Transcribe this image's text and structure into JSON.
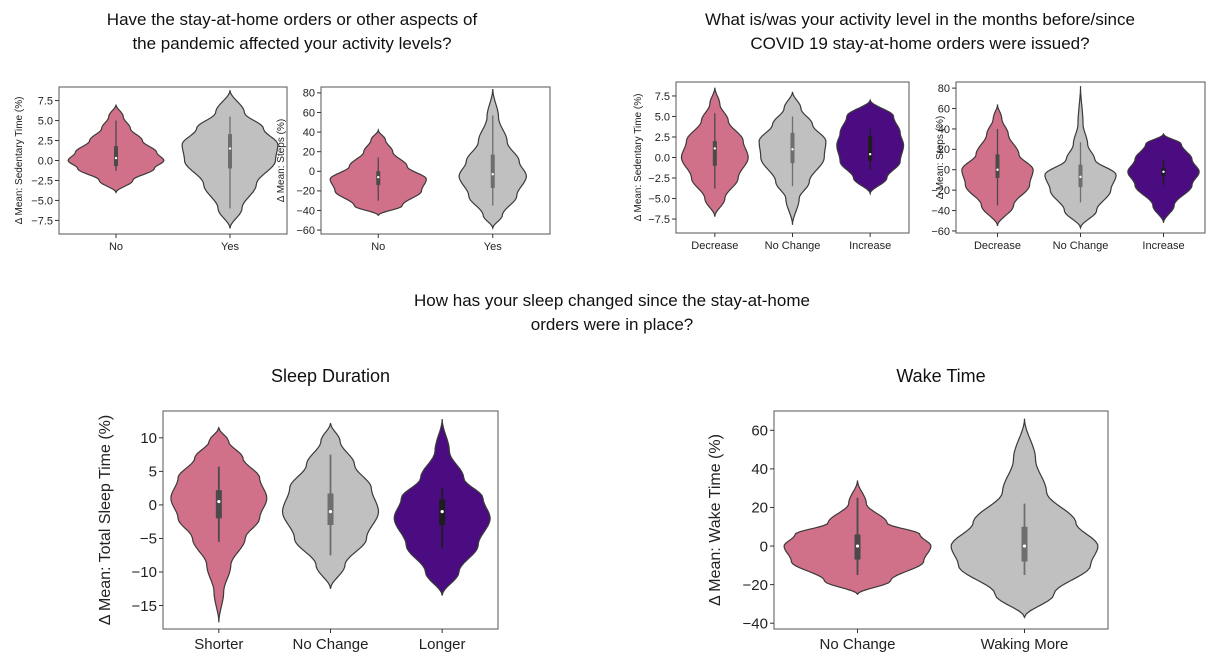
{
  "headings": {
    "activity_q1": [
      "Have the stay-at-home orders or other aspects of",
      "the pandemic affected your activity levels?"
    ],
    "activity_q2": [
      "What is/was your activity level in the months before/since",
      "COVID 19 stay-at-home orders were issued?"
    ],
    "sleep_q": [
      "How has your sleep changed since the stay-at-home",
      "orders were in place?"
    ]
  },
  "colors": {
    "pink": "#d07089",
    "gray": "#c0c0c0",
    "purple": "#4b0c82"
  },
  "chart_data": [
    {
      "type": "violin",
      "title": "",
      "xlabel": "",
      "ylabel": "Δ Mean: Sedentary Time (%)",
      "ylim": [
        -9.2,
        9.2
      ],
      "yticks": [
        -7.5,
        -5.0,
        -2.5,
        0.0,
        2.5,
        5.0,
        7.5
      ],
      "categories": [
        "No",
        "Yes"
      ],
      "series": [
        {
          "category": "No",
          "color": "pink",
          "range": [
            -4.0,
            7.0
          ],
          "q1": -0.7,
          "median": 0.3,
          "q3": 1.8,
          "whisker": [
            -1.3,
            5.0
          ],
          "density": [
            [
              -4.0,
              0.0
            ],
            [
              -2.5,
              0.35
            ],
            [
              -1.0,
              0.8
            ],
            [
              0.0,
              1.0
            ],
            [
              1.0,
              0.85
            ],
            [
              2.5,
              0.55
            ],
            [
              4.0,
              0.3
            ],
            [
              5.5,
              0.15
            ],
            [
              7.0,
              0.0
            ]
          ]
        },
        {
          "category": "Yes",
          "color": "gray",
          "range": [
            -8.5,
            8.8
          ],
          "q1": -1.0,
          "median": 1.5,
          "q3": 3.3,
          "whisker": [
            -6.0,
            5.5
          ],
          "density": [
            [
              -8.5,
              0.0
            ],
            [
              -6.0,
              0.25
            ],
            [
              -3.0,
              0.55
            ],
            [
              0.0,
              0.95
            ],
            [
              2.0,
              1.0
            ],
            [
              4.0,
              0.7
            ],
            [
              6.0,
              0.3
            ],
            [
              8.8,
              0.0
            ]
          ]
        }
      ]
    },
    {
      "type": "violin",
      "title": "",
      "xlabel": "",
      "ylabel": "Δ Mean: Steps (%)",
      "ylim": [
        -64,
        86
      ],
      "yticks": [
        -60,
        -40,
        -20,
        0,
        20,
        40,
        60,
        80
      ],
      "categories": [
        "No",
        "Yes"
      ],
      "series": [
        {
          "category": "No",
          "color": "pink",
          "range": [
            -45,
            42
          ],
          "q1": -14,
          "median": -6,
          "q3": 0,
          "whisker": [
            -30,
            14
          ],
          "density": [
            [
              -45,
              0.0
            ],
            [
              -35,
              0.5
            ],
            [
              -20,
              0.9
            ],
            [
              -8,
              1.0
            ],
            [
              5,
              0.6
            ],
            [
              20,
              0.3
            ],
            [
              32,
              0.15
            ],
            [
              42,
              0.0
            ]
          ]
        },
        {
          "category": "Yes",
          "color": "gray",
          "range": [
            -58,
            84
          ],
          "q1": -17,
          "median": -3,
          "q3": 17,
          "whisker": [
            -35,
            57
          ],
          "density": [
            [
              -58,
              0.0
            ],
            [
              -45,
              0.2
            ],
            [
              -25,
              0.5
            ],
            [
              -5,
              0.7
            ],
            [
              10,
              0.55
            ],
            [
              30,
              0.3
            ],
            [
              55,
              0.12
            ],
            [
              84,
              0.0
            ]
          ]
        }
      ]
    },
    {
      "type": "violin",
      "title": "",
      "xlabel": "",
      "ylabel": "Δ Mean: Sedentary Time (%)",
      "ylim": [
        -9.2,
        9.2
      ],
      "yticks": [
        -7.5,
        -5.0,
        -2.5,
        0.0,
        2.5,
        5.0,
        7.5
      ],
      "categories": [
        "Decrease",
        "No Change",
        "Increase"
      ],
      "series": [
        {
          "category": "Decrease",
          "color": "pink",
          "range": [
            -7.2,
            8.5
          ],
          "q1": -1.0,
          "median": 1.1,
          "q3": 2.0,
          "whisker": [
            -3.8,
            5.4
          ],
          "density": [
            [
              -7.2,
              0.0
            ],
            [
              -5.0,
              0.3
            ],
            [
              -2.5,
              0.7
            ],
            [
              0.0,
              1.0
            ],
            [
              2.0,
              0.85
            ],
            [
              4.5,
              0.4
            ],
            [
              6.5,
              0.15
            ],
            [
              8.5,
              0.0
            ]
          ]
        },
        {
          "category": "No Change",
          "color": "gray",
          "range": [
            -8.2,
            8.0
          ],
          "q1": -0.7,
          "median": 1.0,
          "q3": 3.0,
          "whisker": [
            -3.5,
            5.0
          ],
          "density": [
            [
              -8.2,
              0.0
            ],
            [
              -5.0,
              0.2
            ],
            [
              -3.0,
              0.5
            ],
            [
              0.0,
              0.95
            ],
            [
              2.0,
              1.0
            ],
            [
              4.0,
              0.6
            ],
            [
              6.0,
              0.25
            ],
            [
              8.0,
              0.0
            ]
          ]
        },
        {
          "category": "Increase",
          "color": "purple",
          "range": [
            -4.4,
            7.0
          ],
          "q1": -0.4,
          "median": 0.4,
          "q3": 2.6,
          "whisker": [
            -1.5,
            3.5
          ],
          "density": [
            [
              -4.4,
              0.0
            ],
            [
              -2.5,
              0.5
            ],
            [
              -0.5,
              0.9
            ],
            [
              1.5,
              1.0
            ],
            [
              3.0,
              0.9
            ],
            [
              5.0,
              0.7
            ],
            [
              7.0,
              0.0
            ]
          ]
        }
      ]
    },
    {
      "type": "violin",
      "title": "",
      "xlabel": "",
      "ylabel": "Δ Mean: Steps (%)",
      "ylim": [
        -62,
        86
      ],
      "yticks": [
        -60,
        -40,
        -20,
        0,
        20,
        40,
        60,
        80
      ],
      "categories": [
        "Decrease",
        "No Change",
        "Increase"
      ],
      "series": [
        {
          "category": "Decrease",
          "color": "pink",
          "range": [
            -55,
            64
          ],
          "q1": -8,
          "median": 0,
          "q3": 15,
          "whisker": [
            -35,
            40
          ],
          "density": [
            [
              -55,
              0.0
            ],
            [
              -35,
              0.45
            ],
            [
              -15,
              0.9
            ],
            [
              0,
              1.0
            ],
            [
              15,
              0.6
            ],
            [
              35,
              0.3
            ],
            [
              50,
              0.12
            ],
            [
              64,
              0.0
            ]
          ]
        },
        {
          "category": "No Change",
          "color": "gray",
          "range": [
            -57,
            82
          ],
          "q1": -17,
          "median": -7,
          "q3": 5,
          "whisker": [
            -32,
            27
          ],
          "density": [
            [
              -57,
              0.0
            ],
            [
              -40,
              0.45
            ],
            [
              -20,
              0.85
            ],
            [
              -5,
              1.0
            ],
            [
              10,
              0.4
            ],
            [
              25,
              0.2
            ],
            [
              45,
              0.07
            ],
            [
              82,
              0.0
            ]
          ]
        },
        {
          "category": "Increase",
          "color": "purple",
          "range": [
            -52,
            35
          ],
          "q1": -6,
          "median": -2,
          "q3": 2,
          "whisker": [
            -15,
            10
          ],
          "density": [
            [
              -52,
              0.0
            ],
            [
              -35,
              0.3
            ],
            [
              -15,
              0.8
            ],
            [
              -2,
              1.0
            ],
            [
              10,
              0.8
            ],
            [
              25,
              0.5
            ],
            [
              35,
              0.0
            ]
          ]
        }
      ]
    },
    {
      "type": "violin",
      "title": "Sleep Duration",
      "xlabel": "",
      "ylabel": "Δ Mean: Total Sleep Time (%)",
      "ylim": [
        -18.5,
        14
      ],
      "yticks": [
        -15,
        -10,
        -5,
        0,
        5,
        10
      ],
      "categories": [
        "Shorter",
        "No Change",
        "Longer"
      ],
      "series": [
        {
          "category": "Shorter",
          "color": "pink",
          "range": [
            -17.5,
            11.5
          ],
          "q1": -2.0,
          "median": 0.5,
          "q3": 2.2,
          "whisker": [
            -5.5,
            5.7
          ],
          "density": [
            [
              -17.5,
              0.0
            ],
            [
              -13.0,
              0.1
            ],
            [
              -9.0,
              0.25
            ],
            [
              -5.0,
              0.55
            ],
            [
              -2.0,
              0.85
            ],
            [
              1.0,
              1.0
            ],
            [
              4.0,
              0.85
            ],
            [
              7.0,
              0.5
            ],
            [
              9.5,
              0.2
            ],
            [
              11.5,
              0.0
            ]
          ]
        },
        {
          "category": "No Change",
          "color": "gray",
          "range": [
            -12.5,
            12.2
          ],
          "q1": -3.0,
          "median": -1.0,
          "q3": 1.7,
          "whisker": [
            -7.5,
            7.5
          ],
          "density": [
            [
              -12.5,
              0.0
            ],
            [
              -9.0,
              0.3
            ],
            [
              -5.0,
              0.75
            ],
            [
              -1.0,
              1.0
            ],
            [
              2.5,
              0.85
            ],
            [
              6.0,
              0.5
            ],
            [
              9.5,
              0.2
            ],
            [
              12.2,
              0.0
            ]
          ]
        },
        {
          "category": "Longer",
          "color": "purple",
          "range": [
            -13.5,
            12.8
          ],
          "q1": -3.0,
          "median": -1.0,
          "q3": 0.8,
          "whisker": [
            -6.5,
            2.5
          ],
          "density": [
            [
              -13.5,
              0.0
            ],
            [
              -10.0,
              0.35
            ],
            [
              -6.0,
              0.75
            ],
            [
              -2.0,
              1.0
            ],
            [
              1.0,
              0.85
            ],
            [
              4.0,
              0.45
            ],
            [
              8.0,
              0.15
            ],
            [
              12.8,
              0.0
            ]
          ]
        }
      ]
    },
    {
      "type": "violin",
      "title": "Wake Time",
      "xlabel": "",
      "ylabel": "Δ Mean: Wake Time (%)",
      "ylim": [
        -43,
        70
      ],
      "yticks": [
        -40,
        -20,
        0,
        20,
        40,
        60
      ],
      "categories": [
        "No Change",
        "Waking More"
      ],
      "series": [
        {
          "category": "No Change",
          "color": "pink",
          "range": [
            -25,
            34
          ],
          "q1": -7,
          "median": 0,
          "q3": 6,
          "whisker": [
            -15,
            25
          ],
          "density": [
            [
              -25,
              0.0
            ],
            [
              -18,
              0.45
            ],
            [
              -8,
              0.9
            ],
            [
              0,
              1.0
            ],
            [
              6,
              0.85
            ],
            [
              12,
              0.4
            ],
            [
              22,
              0.12
            ],
            [
              34,
              0.0
            ]
          ]
        },
        {
          "category": "Waking More",
          "color": "gray",
          "range": [
            -37,
            66
          ],
          "q1": -8,
          "median": 0,
          "q3": 10,
          "whisker": [
            -15,
            22
          ],
          "density": [
            [
              -37,
              0.0
            ],
            [
              -25,
              0.4
            ],
            [
              -10,
              0.9
            ],
            [
              0,
              1.0
            ],
            [
              12,
              0.7
            ],
            [
              28,
              0.3
            ],
            [
              45,
              0.15
            ],
            [
              66,
              0.0
            ]
          ]
        }
      ]
    }
  ]
}
